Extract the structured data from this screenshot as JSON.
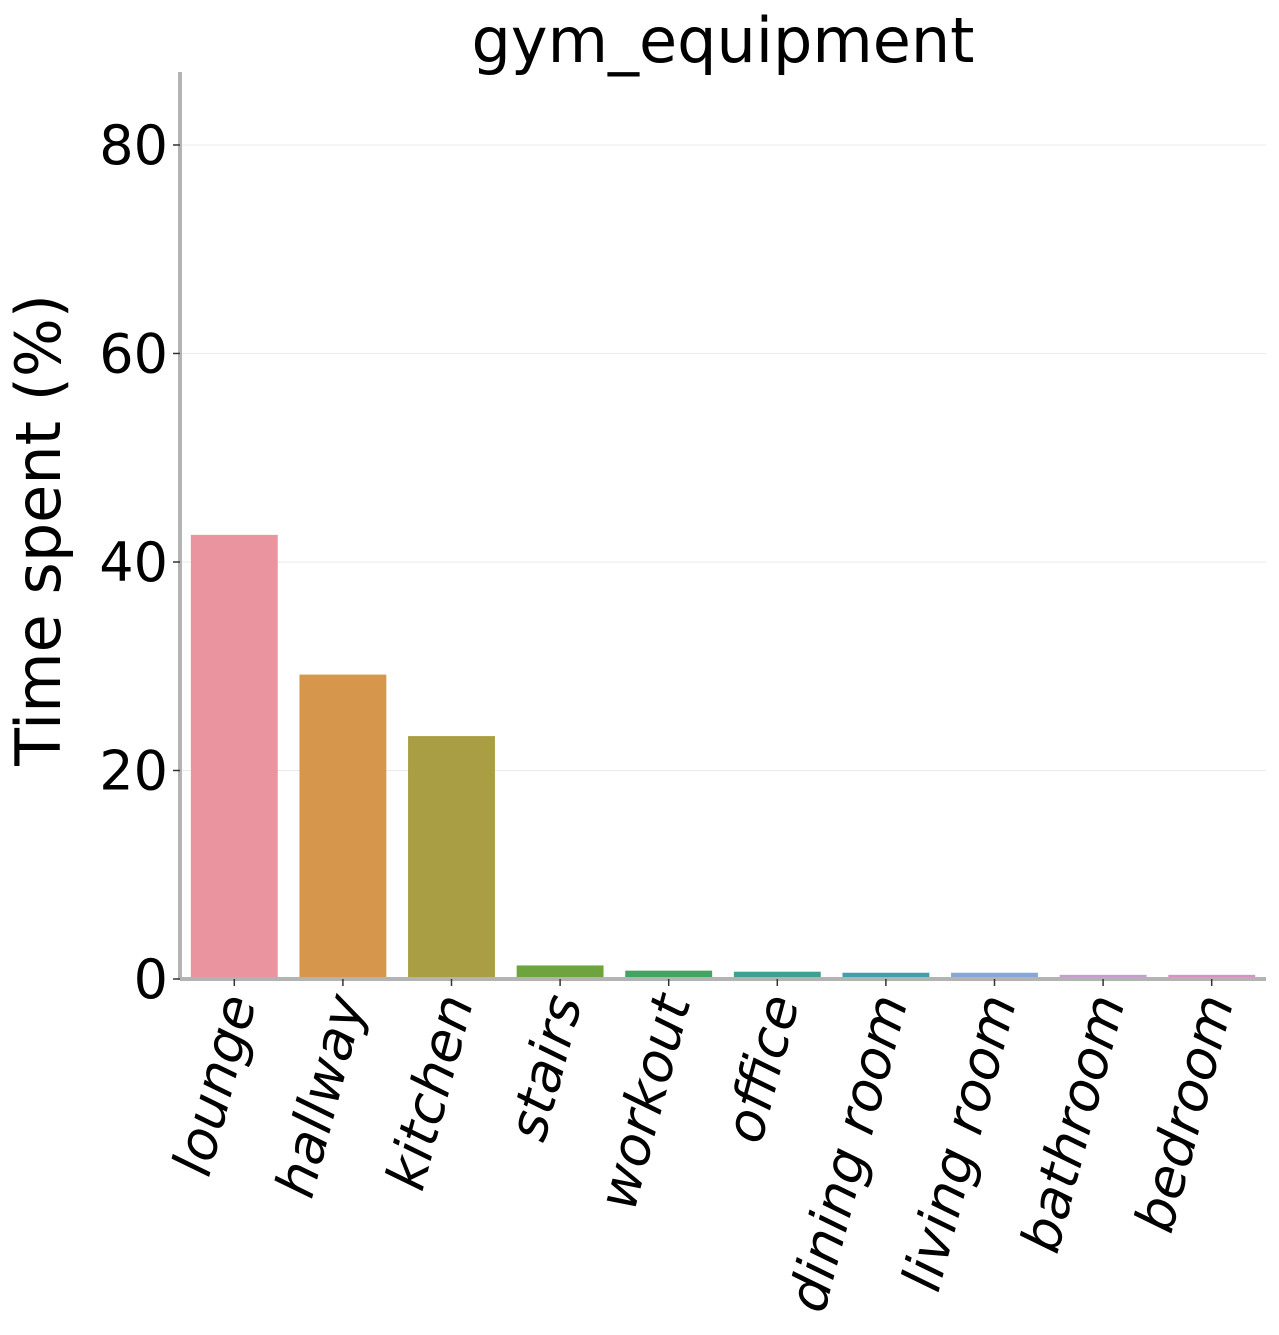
{
  "chart_data": {
    "type": "bar",
    "title": "gym_equipment",
    "xlabel": "",
    "ylabel": "Time spent (%)",
    "ylim": [
      0,
      87
    ],
    "yticks": [
      0,
      20,
      40,
      60,
      80
    ],
    "grid": true,
    "legend": "none",
    "categories": [
      "lounge",
      "hallway",
      "kitchen",
      "stairs",
      "workout",
      "office",
      "dining room",
      "living room",
      "bathroom",
      "bedroom"
    ],
    "values": [
      42.6,
      29.2,
      23.3,
      1.3,
      0.8,
      0.7,
      0.6,
      0.6,
      0.4,
      0.4
    ],
    "colors": [
      "#e9949f",
      "#d6964c",
      "#a99e43",
      "#6ea43d",
      "#3fa561",
      "#3ea092",
      "#3fa0ad",
      "#89a6d8",
      "#c99ad5",
      "#e08cc8"
    ]
  }
}
